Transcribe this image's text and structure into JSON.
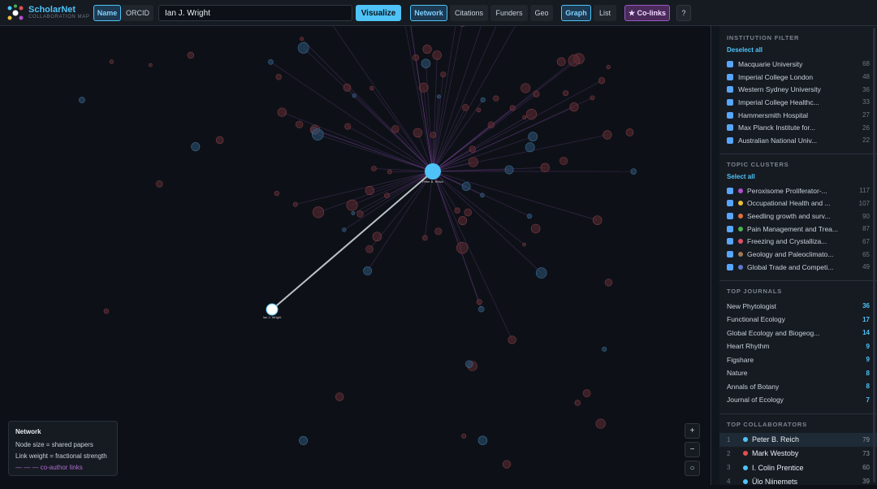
{
  "header": {
    "brand": "ScholarNet",
    "tagline": "COLLABORATION MAP",
    "search_modes": [
      "Name",
      "ORCID"
    ],
    "query": "Ian J. Wright",
    "visualize": "Visualize",
    "views": [
      "Network",
      "Citations",
      "Funders",
      "Geo"
    ],
    "layouts": [
      "Graph",
      "List"
    ],
    "colinks": "★ Co-links",
    "help": "?"
  },
  "graph": {
    "focus": "Peter B. Reich",
    "seed": "Ian J. Wright"
  },
  "legend": {
    "title": "Network",
    "lines": [
      "Node size = shared papers",
      "Link weight = fractional strength",
      "— — — co-author links"
    ]
  },
  "zoom": [
    "+",
    "−",
    "○"
  ],
  "sidebar": {
    "institution_filter": {
      "title": "INSTITUTION FILTER",
      "action": "Deselect all",
      "items": [
        {
          "name": "Macquarie University",
          "count": 68
        },
        {
          "name": "Imperial College London",
          "count": 48
        },
        {
          "name": "Western Sydney University",
          "count": 36
        },
        {
          "name": "Imperial College Healthc...",
          "count": 33
        },
        {
          "name": "Hammersmith Hospital",
          "count": 27
        },
        {
          "name": "Max Planck Institute for...",
          "count": 26
        },
        {
          "name": "Australian National Univ...",
          "count": 22
        }
      ]
    },
    "topic_clusters": {
      "title": "TOPIC CLUSTERS",
      "action": "Select all",
      "items": [
        {
          "name": "Peroxisome Proliferator-...",
          "count": 117,
          "color": "#b44fd0"
        },
        {
          "name": "Occupational Health and ...",
          "count": 107,
          "color": "#e8c13a"
        },
        {
          "name": "Seedling growth and surv...",
          "count": 90,
          "color": "#e0703a"
        },
        {
          "name": "Pain Management and Trea...",
          "count": 87,
          "color": "#4caf50"
        },
        {
          "name": "Freezing and Crystalliza...",
          "count": 67,
          "color": "#e0506a"
        },
        {
          "name": "Geology and Paleoclimato...",
          "count": 65,
          "color": "#a07a50"
        },
        {
          "name": "Global Trade and Competi...",
          "count": 49,
          "color": "#5a7ad0"
        }
      ]
    },
    "top_journals": {
      "title": "TOP JOURNALS",
      "items": [
        {
          "name": "New Phytologist",
          "count": 36
        },
        {
          "name": "Functional Ecology",
          "count": 17
        },
        {
          "name": "Global Ecology and Biogeog...",
          "count": 14
        },
        {
          "name": "Heart Rhythm",
          "count": 9
        },
        {
          "name": "Figshare",
          "count": 9
        },
        {
          "name": "Nature",
          "count": 8
        },
        {
          "name": "Annals of Botany",
          "count": 8
        },
        {
          "name": "Journal of Ecology",
          "count": 7
        }
      ]
    },
    "top_collaborators": {
      "title": "TOP COLLABORATORS",
      "items": [
        {
          "rank": 1,
          "name": "Peter B. Reich",
          "count": 79,
          "color": "#4fc3f7"
        },
        {
          "rank": 2,
          "name": "Mark Westoby",
          "count": 73,
          "color": "#e05050"
        },
        {
          "rank": 3,
          "name": "I. Colin Prentice",
          "count": 60,
          "color": "#4fc3f7"
        },
        {
          "rank": 4,
          "name": "Ülo Niinemets",
          "count": 39,
          "color": "#4fc3f7"
        }
      ]
    }
  }
}
